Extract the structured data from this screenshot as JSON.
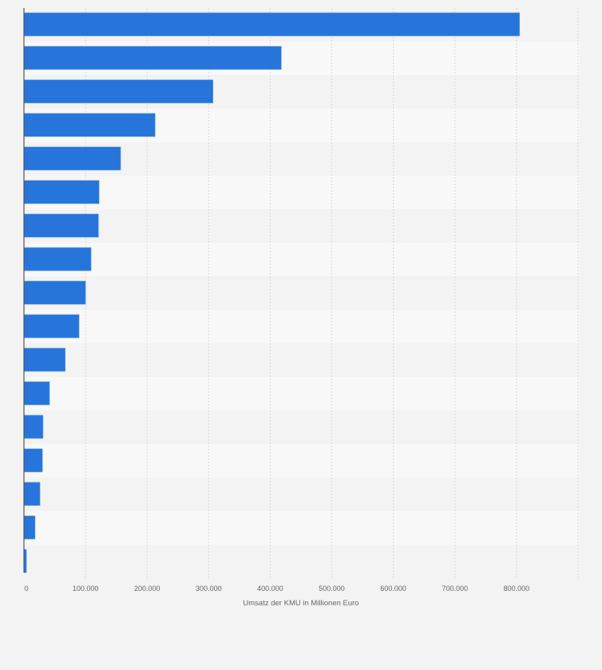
{
  "chart_data": {
    "type": "bar",
    "orientation": "horizontal",
    "title": "",
    "xlabel": "Umsatz der KMU in Millionen Euro",
    "ylabel": "",
    "categories": [
      "",
      "",
      "",
      "",
      "",
      "",
      "",
      "",
      "",
      "",
      "",
      "",
      "",
      "",
      "",
      "",
      ""
    ],
    "values": [
      805000,
      418000,
      307000,
      213000,
      157000,
      122000,
      121000,
      109000,
      100000,
      89500,
      67000,
      41500,
      31000,
      30000,
      26000,
      18000,
      4000
    ],
    "xlim": [
      0,
      900000
    ],
    "xticks": [
      0,
      100000,
      200000,
      300000,
      400000,
      500000,
      600000,
      700000,
      800000
    ],
    "xtick_labels": [
      "0",
      "100.000",
      "200.000",
      "300.000",
      "400.000",
      "500.000",
      "600.000",
      "700.000",
      "800.000"
    ],
    "grid": true,
    "bar_color": "#2775da",
    "row_colors": [
      "#f3f3f3",
      "#f8f8f8"
    ]
  }
}
